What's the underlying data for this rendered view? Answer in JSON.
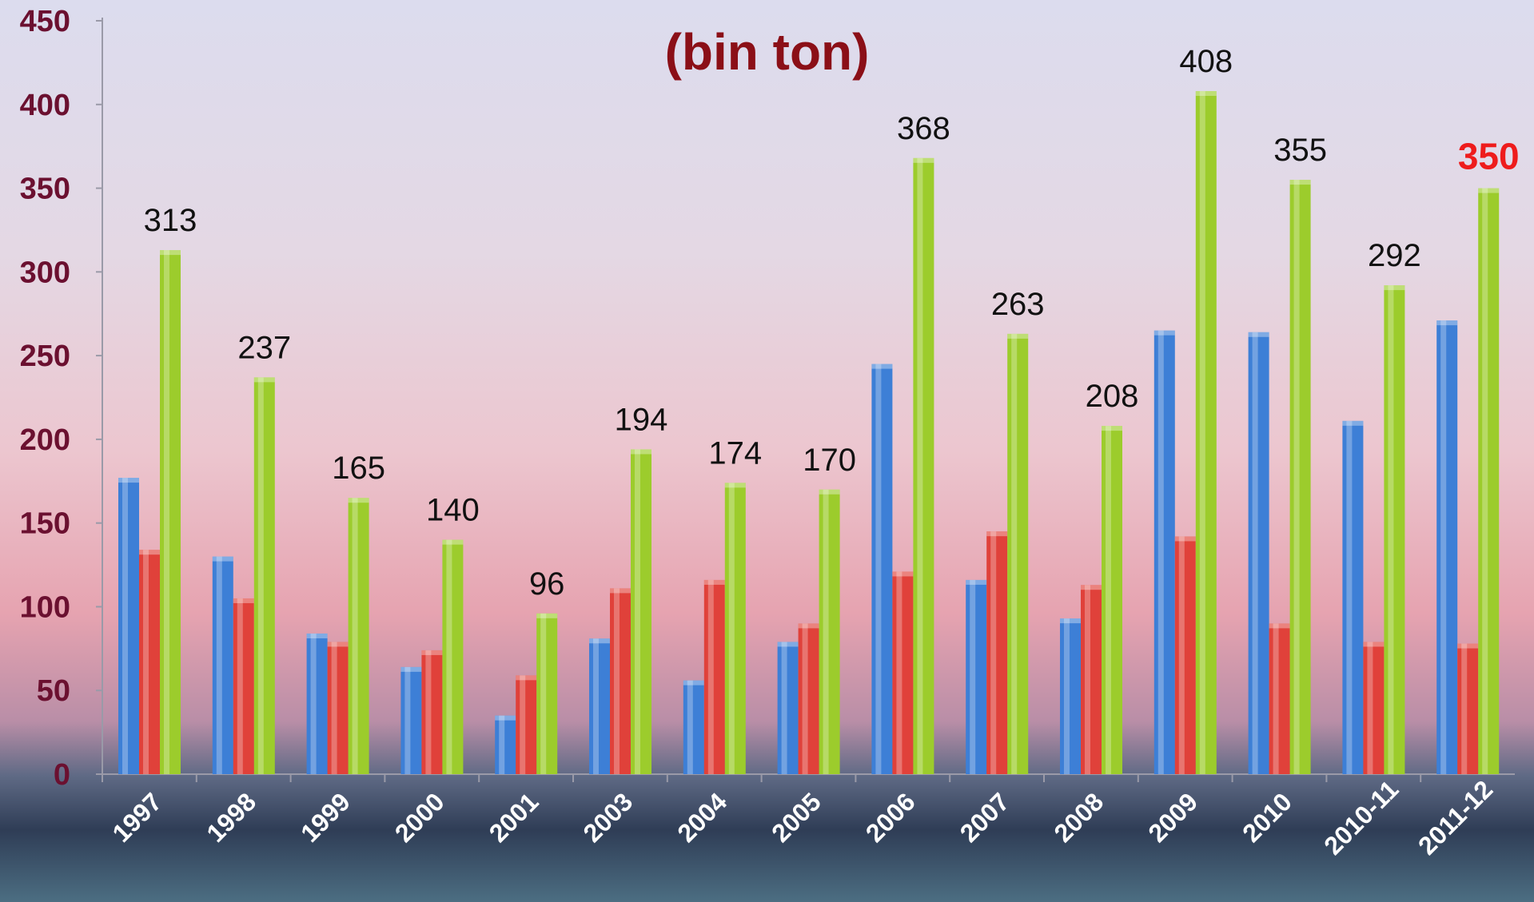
{
  "title": "",
  "subtitle": "(bin ton)",
  "colors": {
    "series_a": "#3d7fd6",
    "series_b": "#e0413a",
    "series_c": "#9ccc2c",
    "highlight_label": "#ee1c1c",
    "title": "#8b0f17",
    "axis_ticks": "#6b1030"
  },
  "chart_data": {
    "type": "bar",
    "categories": [
      "1997",
      "1998",
      "1999",
      "2000",
      "2001",
      "2003",
      "2004",
      "2005",
      "2006",
      "2007",
      "2008",
      "2009",
      "2010",
      "2010-11",
      "2011-12"
    ],
    "series": [
      {
        "color": "#3d7fd6",
        "values": [
          177,
          130,
          84,
          64,
          35,
          81,
          56,
          79,
          245,
          116,
          93,
          265,
          264,
          211,
          271
        ]
      },
      {
        "color": "#e0413a",
        "values": [
          134,
          105,
          79,
          74,
          59,
          111,
          116,
          90,
          121,
          145,
          113,
          142,
          90,
          79,
          78
        ]
      },
      {
        "color": "#9ccc2c",
        "values": [
          313,
          237,
          165,
          140,
          96,
          194,
          174,
          170,
          368,
          263,
          208,
          408,
          355,
          292,
          350
        ]
      }
    ],
    "data_labels": [
      "313",
      "237",
      "165",
      "140",
      "96",
      "194",
      "174",
      "170",
      "368",
      "263",
      "208",
      "408",
      "355",
      "292",
      "350"
    ],
    "highlighted_label_index": 14,
    "y_ticks": [
      "0",
      "50",
      "100",
      "150",
      "200",
      "250",
      "300",
      "350",
      "400",
      "450"
    ],
    "ylim": [
      0,
      450
    ],
    "grid": false,
    "legend": "none"
  }
}
